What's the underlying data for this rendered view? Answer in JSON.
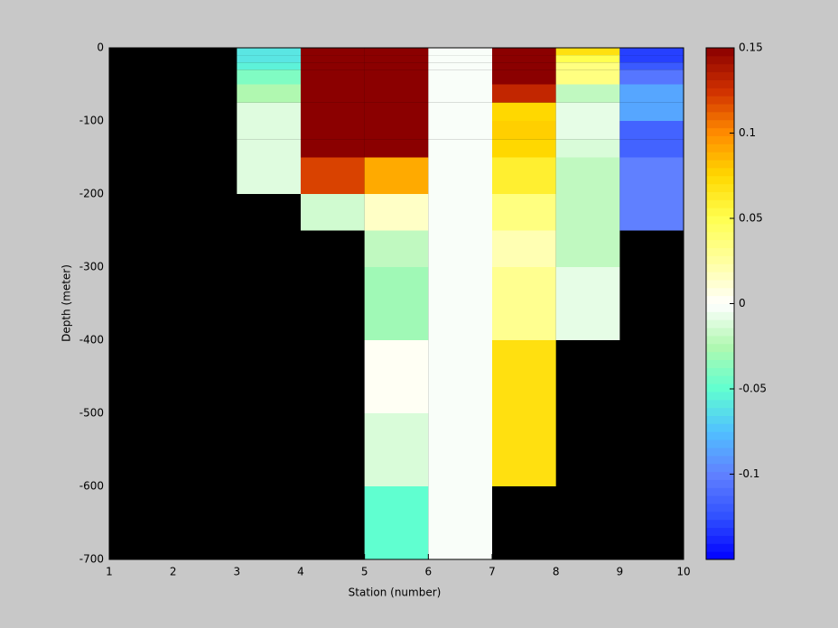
{
  "chart_data": {
    "type": "heatmap",
    "xlabel": "Station (number)",
    "ylabel": "Depth (meter)",
    "x": [
      1,
      2,
      3,
      4,
      5,
      6,
      7,
      8,
      9,
      10
    ],
    "y": [
      0,
      -10,
      -20,
      -30,
      -50,
      -75,
      -100,
      -125,
      -150,
      -200,
      -250,
      -300,
      -400,
      -500,
      -600,
      -700
    ],
    "values": [
      [
        null,
        null,
        -0.06,
        0.15,
        0.15,
        -0.002,
        0.15,
        0.07,
        -0.13
      ],
      [
        null,
        null,
        -0.06,
        0.15,
        0.15,
        -0.002,
        0.15,
        0.05,
        -0.13
      ],
      [
        null,
        null,
        -0.055,
        0.15,
        0.15,
        -0.002,
        0.15,
        0.035,
        -0.12
      ],
      [
        null,
        null,
        -0.04,
        0.15,
        0.15,
        -0.002,
        0.15,
        0.035,
        -0.105
      ],
      [
        null,
        null,
        -0.025,
        0.15,
        0.15,
        -0.002,
        0.13,
        -0.02,
        -0.085
      ],
      [
        null,
        null,
        -0.01,
        0.15,
        0.15,
        -0.002,
        0.075,
        -0.008,
        -0.085
      ],
      [
        null,
        null,
        -0.01,
        0.15,
        0.15,
        -0.002,
        0.078,
        -0.008,
        -0.115
      ],
      [
        null,
        null,
        -0.01,
        0.15,
        0.15,
        -0.002,
        0.075,
        -0.012,
        -0.115
      ],
      [
        null,
        null,
        -0.01,
        0.12,
        0.09,
        -0.002,
        0.06,
        -0.02,
        -0.1
      ],
      [
        null,
        null,
        null,
        -0.015,
        0.015,
        -0.002,
        0.035,
        -0.02,
        -0.1
      ],
      [
        null,
        null,
        null,
        null,
        -0.02,
        -0.002,
        0.02,
        -0.02,
        null
      ],
      [
        null,
        null,
        null,
        null,
        -0.03,
        -0.002,
        0.03,
        -0.008,
        null
      ],
      [
        null,
        null,
        null,
        null,
        0.003,
        -0.002,
        0.07,
        null,
        null
      ],
      [
        null,
        null,
        null,
        null,
        -0.012,
        -0.002,
        0.07,
        null,
        null
      ],
      [
        null,
        null,
        null,
        null,
        -0.05,
        -0.002,
        null,
        null,
        null
      ]
    ],
    "xlim": [
      1,
      10
    ],
    "xticks": [
      1,
      2,
      3,
      4,
      5,
      6,
      7,
      8,
      9,
      10
    ],
    "ylim": [
      -700,
      0
    ],
    "yticks": [
      0,
      -100,
      -200,
      -300,
      -400,
      -500,
      -600,
      -700
    ],
    "clim": [
      -0.15,
      0.15
    ],
    "cticks": [
      -0.1,
      -0.05,
      0,
      0.05,
      0.1,
      0.15
    ],
    "colormap": [
      "#0000ff",
      "#3050ff",
      "#6080ff",
      "#50c0ff",
      "#60ffd0",
      "#b0f8b0",
      "#ffffff",
      "#ffffa0",
      "#ffff50",
      "#ffd800",
      "#ff8c00",
      "#d03000",
      "#8b0000"
    ]
  }
}
